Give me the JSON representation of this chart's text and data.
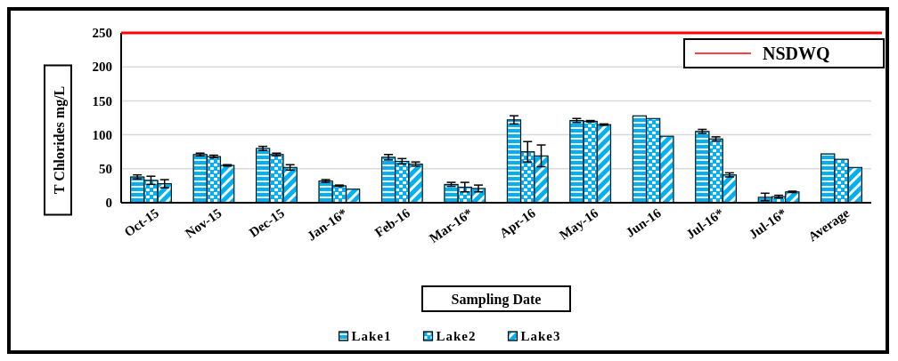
{
  "chart_data": {
    "type": "bar",
    "xlabel": "Sampling Date",
    "ylabel": "T Chlorides mg/L",
    "categories": [
      "Oct-15",
      "Nov-15",
      "Dec-15",
      "Jan-16*",
      "Feb-16",
      "Mar-16*",
      "Apr-16",
      "May-16",
      "Jun-16",
      "Jul-16*",
      "Jul-16*",
      "Average"
    ],
    "series": [
      {
        "name": "Lake1",
        "color": "#00b0f0",
        "values": [
          38,
          71,
          80,
          32,
          67,
          27,
          122,
          121,
          128,
          105,
          8,
          72
        ],
        "errors": [
          3,
          2,
          3,
          2,
          4,
          3,
          6,
          3,
          null,
          3,
          [
            3,
            14
          ],
          null
        ]
      },
      {
        "name": "Lake2",
        "color": "#00b0f0",
        "values": [
          33,
          68,
          71,
          25,
          61,
          23,
          75,
          120,
          124,
          94,
          9,
          64
        ],
        "errors": [
          6,
          2,
          2,
          1,
          4,
          7,
          15,
          1,
          null,
          3,
          2,
          null
        ]
      },
      {
        "name": "Lake3",
        "color": "#00b0f0",
        "values": [
          28,
          55,
          52,
          20,
          57,
          21,
          69,
          115,
          98,
          41,
          16,
          52
        ],
        "errors": [
          6,
          1,
          4,
          null,
          3,
          5,
          16,
          1,
          null,
          3,
          1,
          null
        ]
      }
    ],
    "ylim": [
      0,
      250
    ],
    "yticks": [
      0,
      50,
      100,
      150,
      200,
      250
    ],
    "grid": "y",
    "legend": "bottom",
    "ref_lines": [
      {
        "axis": "y",
        "value": 250,
        "label": "NSDWQ",
        "color": "#ff0000"
      }
    ]
  }
}
